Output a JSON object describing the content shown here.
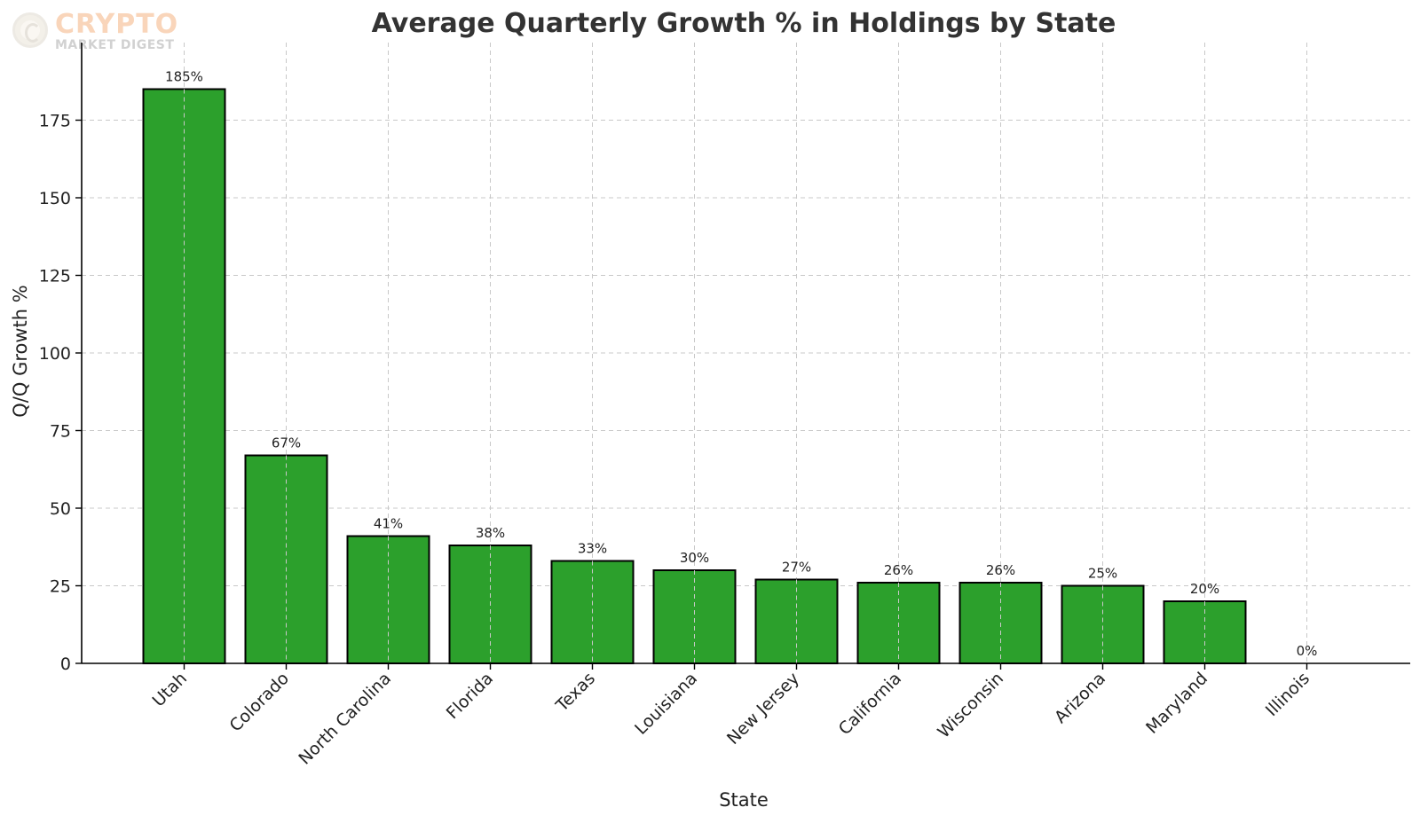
{
  "watermark": {
    "brand": "CRYPTO",
    "subtitle": "MARKET DIGEST"
  },
  "colors": {
    "bar_fill": "#2ca02c",
    "bar_edge": "#000000",
    "title": "#333333",
    "grid": "#c8c8c8",
    "watermark_brand": "#f2a468"
  },
  "chart_data": {
    "type": "bar",
    "title": "Average Quarterly Growth % in Holdings by State",
    "xlabel": "State",
    "ylabel": "Q/Q Growth %",
    "categories": [
      "Utah",
      "Colorado",
      "North Carolina",
      "Florida",
      "Texas",
      "Louisiana",
      "New Jersey",
      "California",
      "Wisconsin",
      "Arizona",
      "Maryland",
      "Illinois"
    ],
    "values": [
      185,
      67,
      41,
      38,
      33,
      30,
      27,
      26,
      26,
      25,
      20,
      0
    ],
    "data_labels": [
      "185%",
      "67%",
      "41%",
      "38%",
      "33%",
      "30%",
      "27%",
      "26%",
      "26%",
      "25%",
      "20%",
      "0%"
    ],
    "ylim": [
      0,
      200
    ],
    "yticks": [
      0,
      25,
      50,
      75,
      100,
      125,
      150,
      175
    ],
    "grid": true,
    "legend": "none"
  }
}
